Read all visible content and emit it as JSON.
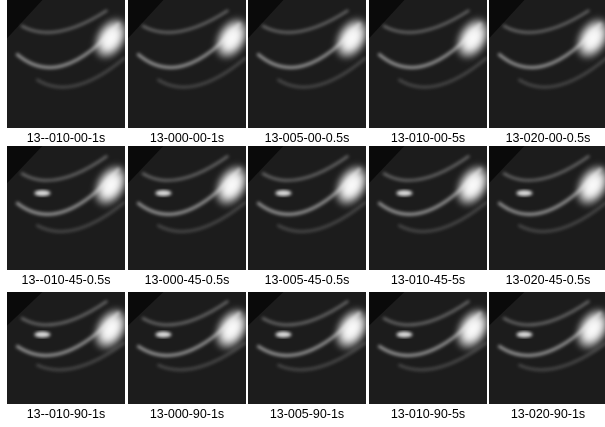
{
  "rows": [
    [
      "13--010-00-1s",
      "13-000-00-1s",
      "13-005-00-0.5s",
      "13-010-00-5s",
      "13-020-00-0.5s"
    ],
    [
      "13--010-45-0.5s",
      "13-000-45-0.5s",
      "13-005-45-0.5s",
      "13-010-45-5s",
      "13-020-45-0.5s"
    ],
    [
      "13--010-90-1s",
      "13-000-90-1s",
      "13-005-90-1s",
      "13-010-90-5s",
      "13-020-90-1s"
    ]
  ]
}
